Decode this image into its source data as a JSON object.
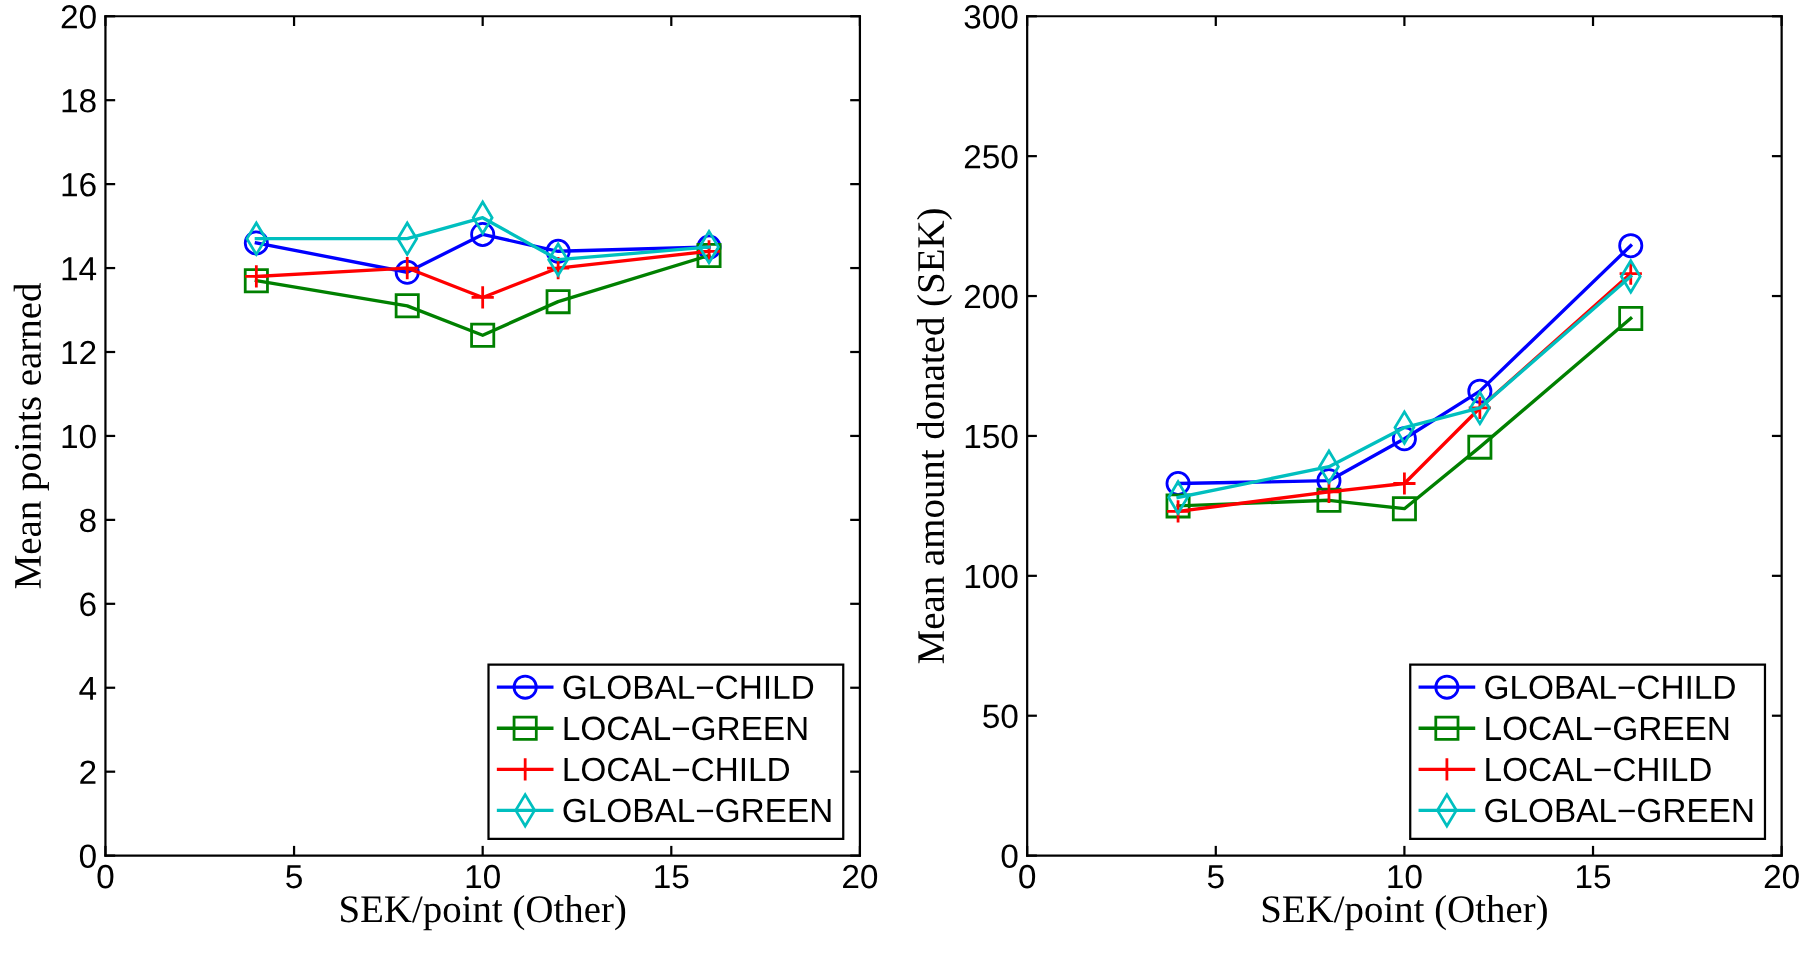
{
  "chart_data": [
    {
      "type": "line",
      "xlabel": "SEK/point (Other)",
      "ylabel": "Mean points earned",
      "x": [
        4,
        8,
        10,
        12,
        16
      ],
      "xlim": [
        0,
        20
      ],
      "xticks": [
        0,
        5,
        10,
        15,
        20
      ],
      "ylim": [
        0,
        20
      ],
      "yticks": [
        0,
        2,
        4,
        6,
        8,
        10,
        12,
        14,
        16,
        18,
        20
      ],
      "grid": false,
      "legend": "bottom right",
      "line_style": "solid",
      "series": [
        {
          "name": "GLOBAL−CHILD",
          "color": "#0000ff",
          "marker": "circle",
          "values": [
            14.6,
            13.9,
            14.8,
            14.4,
            14.5
          ]
        },
        {
          "name": "LOCAL−GREEN",
          "color": "#008000",
          "marker": "square",
          "values": [
            13.7,
            13.1,
            12.4,
            13.2,
            14.3
          ]
        },
        {
          "name": "LOCAL−CHILD",
          "color": "#ff0000",
          "marker": "cross",
          "values": [
            13.8,
            14.0,
            13.3,
            14.0,
            14.4
          ]
        },
        {
          "name": "GLOBAL−GREEN",
          "color": "#00bfbf",
          "marker": "diamond",
          "values": [
            14.7,
            14.7,
            15.2,
            14.2,
            14.5
          ]
        }
      ]
    },
    {
      "type": "line",
      "xlabel": "SEK/point (Other)",
      "ylabel": "Mean amount donated (SEK)",
      "x": [
        4,
        8,
        10,
        12,
        16
      ],
      "xlim": [
        0,
        20
      ],
      "xticks": [
        0,
        5,
        10,
        15,
        20
      ],
      "ylim": [
        0,
        300
      ],
      "yticks": [
        0,
        50,
        100,
        150,
        200,
        250,
        300
      ],
      "grid": false,
      "legend": "bottom right",
      "line_style": "solid",
      "series": [
        {
          "name": "GLOBAL−CHILD",
          "color": "#0000ff",
          "marker": "circle",
          "values": [
            133,
            134,
            149,
            166,
            218
          ]
        },
        {
          "name": "LOCAL−GREEN",
          "color": "#008000",
          "marker": "square",
          "values": [
            125,
            127,
            124,
            146,
            192
          ]
        },
        {
          "name": "LOCAL−CHILD",
          "color": "#ff0000",
          "marker": "cross",
          "values": [
            123,
            130,
            133,
            160,
            208
          ]
        },
        {
          "name": "GLOBAL−GREEN",
          "color": "#00bfbf",
          "marker": "diamond",
          "values": [
            128,
            139,
            153,
            160,
            207
          ]
        }
      ]
    }
  ]
}
